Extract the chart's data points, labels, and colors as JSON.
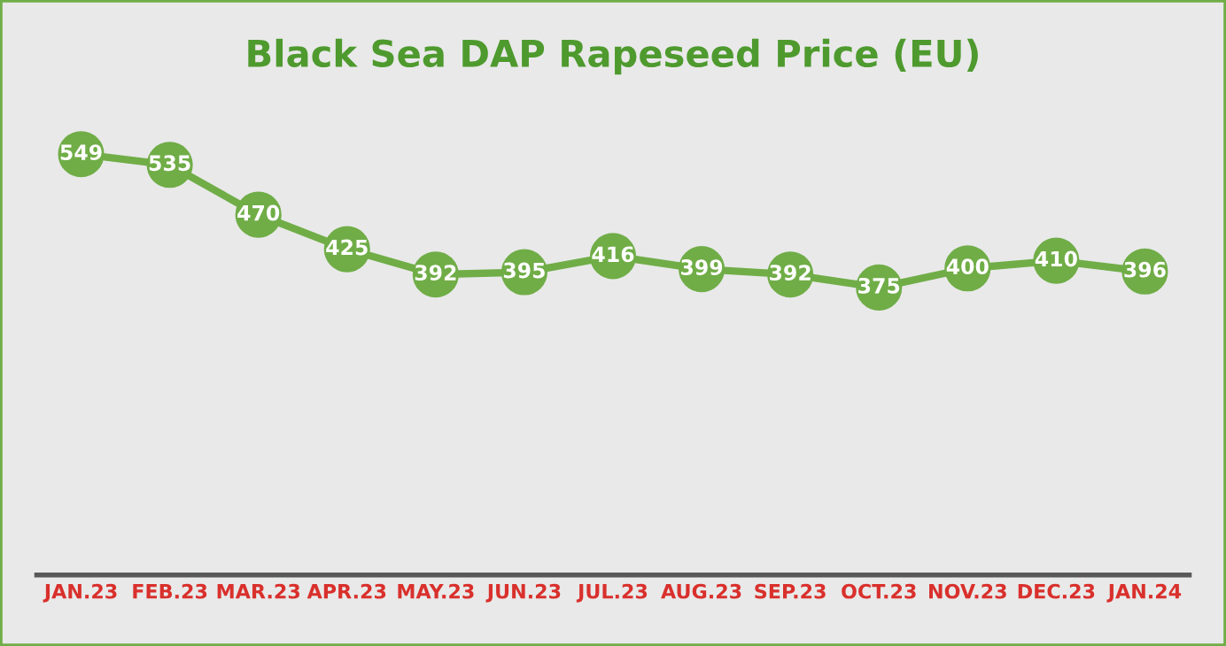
{
  "chart_data": {
    "type": "line",
    "title": "Black Sea DAP Rapeseed Price (EU)",
    "categories": [
      "JAN.23",
      "FEB.23",
      "MAR.23",
      "APR.23",
      "MAY.23",
      "JUN.23",
      "JUL.23",
      "AUG.23",
      "SEP.23",
      "OCT.23",
      "NOV.23",
      "DEC.23",
      "JAN.24"
    ],
    "series": [
      {
        "color": "#70ad47",
        "values": [
          549,
          535,
          470,
          425,
          392,
          395,
          416,
          399,
          392,
          375,
          400,
          410,
          396
        ]
      }
    ],
    "tick_labels": "x",
    "marker": "circle",
    "line_style": "solid",
    "data_labels": true
  }
}
